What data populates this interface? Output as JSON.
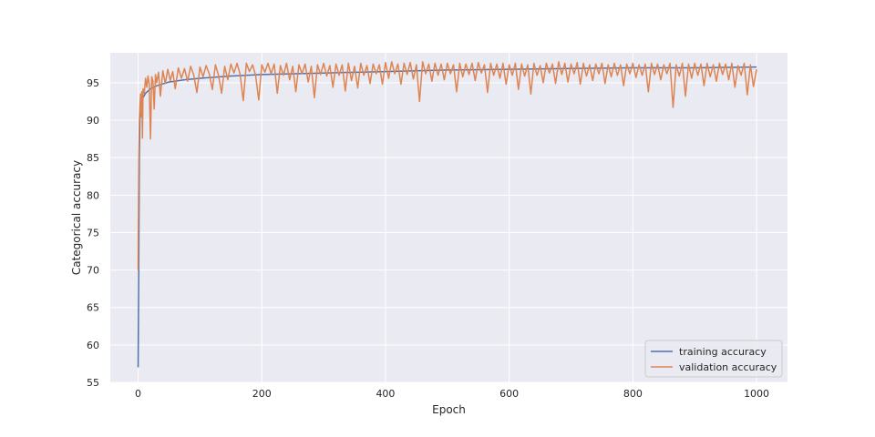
{
  "chart_data": {
    "type": "line",
    "title": "",
    "xlabel": "Epoch",
    "ylabel": "Categorical accuracy",
    "xlim": [
      -45,
      1050
    ],
    "ylim": [
      55,
      99
    ],
    "x_ticks": [
      0,
      200,
      400,
      600,
      800,
      1000
    ],
    "y_ticks": [
      55,
      60,
      65,
      70,
      75,
      80,
      85,
      90,
      95
    ],
    "grid": true,
    "legend_position": "lower-right",
    "background": "#eaeaf2",
    "series": [
      {
        "name": "training accuracy",
        "color": "#4c72b0",
        "points": [
          [
            0,
            57.0
          ],
          [
            1,
            69.5
          ],
          [
            2,
            85.0
          ],
          [
            3,
            90.2
          ],
          [
            5,
            92.0
          ],
          [
            8,
            93.0
          ],
          [
            12,
            93.6
          ],
          [
            20,
            94.2
          ],
          [
            30,
            94.6
          ],
          [
            50,
            95.1
          ],
          [
            75,
            95.4
          ],
          [
            100,
            95.6
          ],
          [
            150,
            95.9
          ],
          [
            200,
            96.1
          ],
          [
            300,
            96.3
          ],
          [
            400,
            96.5
          ],
          [
            500,
            96.7
          ],
          [
            600,
            96.8
          ],
          [
            700,
            96.9
          ],
          [
            800,
            97.0
          ],
          [
            900,
            97.0
          ],
          [
            1000,
            97.1
          ]
        ]
      },
      {
        "name": "validation accuracy",
        "color": "#dd8452",
        "points": [
          [
            0,
            70.0
          ],
          [
            1,
            84.5
          ],
          [
            2,
            89.8
          ],
          [
            3,
            92.0
          ],
          [
            4,
            93.5
          ],
          [
            5,
            90.5
          ],
          [
            6,
            93.8
          ],
          [
            7,
            87.6
          ],
          [
            8,
            94.2
          ],
          [
            10,
            93.6
          ],
          [
            12,
            95.6
          ],
          [
            14,
            94.4
          ],
          [
            16,
            95.9
          ],
          [
            18,
            94.8
          ],
          [
            20,
            87.5
          ],
          [
            22,
            95.8
          ],
          [
            24,
            95.2
          ],
          [
            26,
            91.5
          ],
          [
            28,
            96.1
          ],
          [
            30,
            95.0
          ],
          [
            33,
            96.4
          ],
          [
            36,
            93.2
          ],
          [
            40,
            96.6
          ],
          [
            44,
            94.9
          ],
          [
            48,
            96.8
          ],
          [
            52,
            95.3
          ],
          [
            56,
            96.5
          ],
          [
            60,
            94.2
          ],
          [
            65,
            97.0
          ],
          [
            70,
            95.6
          ],
          [
            75,
            96.9
          ],
          [
            80,
            95.2
          ],
          [
            85,
            97.2
          ],
          [
            90,
            96.0
          ],
          [
            95,
            93.7
          ],
          [
            100,
            97.1
          ],
          [
            105,
            95.8
          ],
          [
            110,
            97.3
          ],
          [
            115,
            96.2
          ],
          [
            120,
            94.1
          ],
          [
            125,
            97.4
          ],
          [
            130,
            96.0
          ],
          [
            135,
            93.6
          ],
          [
            140,
            97.2
          ],
          [
            145,
            95.4
          ],
          [
            150,
            97.5
          ],
          [
            155,
            96.3
          ],
          [
            160,
            97.6
          ],
          [
            165,
            96.1
          ],
          [
            170,
            92.6
          ],
          [
            175,
            97.6
          ],
          [
            180,
            96.5
          ],
          [
            185,
            97.4
          ],
          [
            190,
            96.0
          ],
          [
            195,
            92.7
          ],
          [
            200,
            97.4
          ],
          [
            205,
            96.4
          ],
          [
            210,
            97.6
          ],
          [
            215,
            96.2
          ],
          [
            220,
            97.5
          ],
          [
            225,
            93.6
          ],
          [
            230,
            97.3
          ],
          [
            235,
            96.0
          ],
          [
            240,
            97.6
          ],
          [
            245,
            95.4
          ],
          [
            250,
            97.2
          ],
          [
            255,
            93.8
          ],
          [
            260,
            97.4
          ],
          [
            265,
            96.2
          ],
          [
            270,
            97.5
          ],
          [
            275,
            95.1
          ],
          [
            280,
            97.2
          ],
          [
            285,
            93.0
          ],
          [
            290,
            97.4
          ],
          [
            295,
            96.1
          ],
          [
            300,
            97.6
          ],
          [
            305,
            95.9
          ],
          [
            310,
            97.3
          ],
          [
            315,
            94.4
          ],
          [
            320,
            97.5
          ],
          [
            325,
            96.0
          ],
          [
            330,
            97.4
          ],
          [
            335,
            93.9
          ],
          [
            340,
            97.6
          ],
          [
            345,
            95.3
          ],
          [
            350,
            97.2
          ],
          [
            355,
            94.3
          ],
          [
            360,
            97.6
          ],
          [
            365,
            96.0
          ],
          [
            370,
            97.3
          ],
          [
            375,
            94.9
          ],
          [
            380,
            97.5
          ],
          [
            385,
            96.2
          ],
          [
            390,
            97.4
          ],
          [
            395,
            94.8
          ],
          [
            400,
            97.7
          ],
          [
            405,
            95.6
          ],
          [
            410,
            97.8
          ],
          [
            415,
            96.2
          ],
          [
            420,
            97.5
          ],
          [
            425,
            94.8
          ],
          [
            430,
            97.6
          ],
          [
            435,
            96.1
          ],
          [
            440,
            97.7
          ],
          [
            445,
            95.5
          ],
          [
            450,
            97.4
          ],
          [
            455,
            92.5
          ],
          [
            460,
            97.8
          ],
          [
            465,
            96.2
          ],
          [
            470,
            97.5
          ],
          [
            475,
            95.2
          ],
          [
            480,
            97.6
          ],
          [
            485,
            96.0
          ],
          [
            490,
            97.5
          ],
          [
            495,
            95.4
          ],
          [
            500,
            97.6
          ],
          [
            505,
            96.2
          ],
          [
            510,
            97.4
          ],
          [
            515,
            93.8
          ],
          [
            520,
            97.6
          ],
          [
            525,
            95.8
          ],
          [
            530,
            97.5
          ],
          [
            535,
            96.1
          ],
          [
            540,
            97.6
          ],
          [
            545,
            95.3
          ],
          [
            550,
            97.7
          ],
          [
            555,
            96.3
          ],
          [
            560,
            97.4
          ],
          [
            565,
            93.7
          ],
          [
            570,
            97.6
          ],
          [
            575,
            96.0
          ],
          [
            580,
            97.5
          ],
          [
            585,
            95.6
          ],
          [
            590,
            97.6
          ],
          [
            595,
            94.8
          ],
          [
            600,
            97.4
          ],
          [
            605,
            96.0
          ],
          [
            610,
            97.6
          ],
          [
            615,
            94.1
          ],
          [
            620,
            97.5
          ],
          [
            625,
            95.9
          ],
          [
            630,
            97.4
          ],
          [
            635,
            93.5
          ],
          [
            640,
            97.6
          ],
          [
            645,
            96.0
          ],
          [
            650,
            97.3
          ],
          [
            655,
            95.0
          ],
          [
            660,
            97.6
          ],
          [
            665,
            96.3
          ],
          [
            670,
            97.5
          ],
          [
            675,
            94.9
          ],
          [
            680,
            97.8
          ],
          [
            685,
            96.1
          ],
          [
            690,
            97.6
          ],
          [
            695,
            95.1
          ],
          [
            700,
            97.5
          ],
          [
            705,
            96.2
          ],
          [
            710,
            97.7
          ],
          [
            715,
            94.8
          ],
          [
            720,
            97.6
          ],
          [
            725,
            95.9
          ],
          [
            730,
            97.4
          ],
          [
            735,
            95.3
          ],
          [
            740,
            97.5
          ],
          [
            745,
            96.2
          ],
          [
            750,
            97.6
          ],
          [
            755,
            94.9
          ],
          [
            760,
            97.4
          ],
          [
            765,
            95.8
          ],
          [
            770,
            97.6
          ],
          [
            775,
            96.0
          ],
          [
            780,
            97.4
          ],
          [
            785,
            94.6
          ],
          [
            790,
            97.5
          ],
          [
            795,
            96.2
          ],
          [
            800,
            97.6
          ],
          [
            805,
            95.7
          ],
          [
            810,
            97.4
          ],
          [
            815,
            96.0
          ],
          [
            820,
            97.5
          ],
          [
            825,
            93.8
          ],
          [
            830,
            97.6
          ],
          [
            835,
            96.1
          ],
          [
            840,
            97.5
          ],
          [
            845,
            95.4
          ],
          [
            850,
            97.4
          ],
          [
            855,
            96.2
          ],
          [
            860,
            97.6
          ],
          [
            865,
            91.7
          ],
          [
            870,
            97.4
          ],
          [
            875,
            95.9
          ],
          [
            880,
            97.6
          ],
          [
            885,
            93.2
          ],
          [
            890,
            97.5
          ],
          [
            895,
            95.6
          ],
          [
            900,
            97.6
          ],
          [
            905,
            96.0
          ],
          [
            910,
            97.5
          ],
          [
            915,
            94.6
          ],
          [
            920,
            97.6
          ],
          [
            925,
            95.8
          ],
          [
            930,
            97.4
          ],
          [
            935,
            95.2
          ],
          [
            940,
            97.6
          ],
          [
            945,
            96.1
          ],
          [
            950,
            97.5
          ],
          [
            955,
            95.4
          ],
          [
            960,
            97.6
          ],
          [
            965,
            94.4
          ],
          [
            970,
            97.3
          ],
          [
            975,
            96.0
          ],
          [
            980,
            97.6
          ],
          [
            985,
            93.4
          ],
          [
            990,
            97.4
          ],
          [
            995,
            94.5
          ],
          [
            1000,
            96.8
          ]
        ]
      }
    ]
  }
}
